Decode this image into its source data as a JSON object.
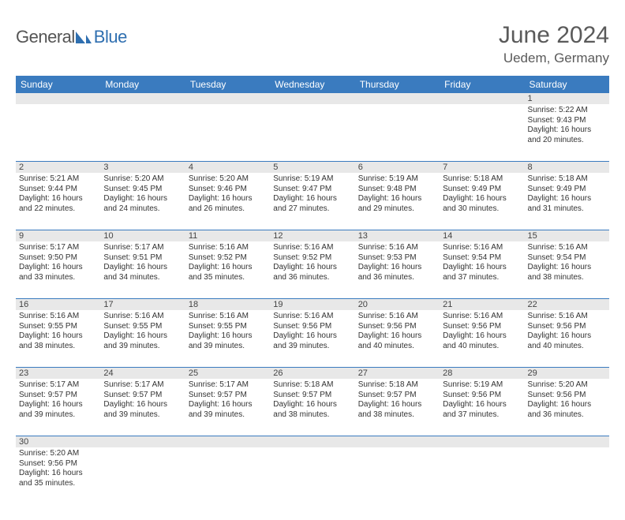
{
  "logo": {
    "part1": "General",
    "part2": "Blue"
  },
  "title": "June 2024",
  "location": "Uedem, Germany",
  "dayNames": [
    "Sunday",
    "Monday",
    "Tuesday",
    "Wednesday",
    "Thursday",
    "Friday",
    "Saturday"
  ],
  "colors": {
    "headerBg": "#3a7bbf",
    "headerText": "#ffffff",
    "dayNumBg": "#e8e8e8",
    "rowBorder": "#3a7bbf",
    "textColor": "#333333",
    "titleColor": "#5a5a5a",
    "logoGray": "#555555",
    "logoBlue": "#2f6fb0",
    "pageBg": "#ffffff"
  },
  "typography": {
    "title_fontsize": 30,
    "location_fontsize": 17,
    "dayheader_fontsize": 12,
    "daynum_fontsize": 11,
    "cell_fontsize": 10,
    "logo_fontsize": 22
  },
  "layout": {
    "columns": 7,
    "rows": 6,
    "cell_min_height": 72
  },
  "weeks": [
    {
      "nums": [
        "",
        "",
        "",
        "",
        "",
        "",
        "1"
      ],
      "cells": [
        null,
        null,
        null,
        null,
        null,
        null,
        {
          "sunrise": "Sunrise: 5:22 AM",
          "sunset": "Sunset: 9:43 PM",
          "daylight": "Daylight: 16 hours and 20 minutes."
        }
      ]
    },
    {
      "nums": [
        "2",
        "3",
        "4",
        "5",
        "6",
        "7",
        "8"
      ],
      "cells": [
        {
          "sunrise": "Sunrise: 5:21 AM",
          "sunset": "Sunset: 9:44 PM",
          "daylight": "Daylight: 16 hours and 22 minutes."
        },
        {
          "sunrise": "Sunrise: 5:20 AM",
          "sunset": "Sunset: 9:45 PM",
          "daylight": "Daylight: 16 hours and 24 minutes."
        },
        {
          "sunrise": "Sunrise: 5:20 AM",
          "sunset": "Sunset: 9:46 PM",
          "daylight": "Daylight: 16 hours and 26 minutes."
        },
        {
          "sunrise": "Sunrise: 5:19 AM",
          "sunset": "Sunset: 9:47 PM",
          "daylight": "Daylight: 16 hours and 27 minutes."
        },
        {
          "sunrise": "Sunrise: 5:19 AM",
          "sunset": "Sunset: 9:48 PM",
          "daylight": "Daylight: 16 hours and 29 minutes."
        },
        {
          "sunrise": "Sunrise: 5:18 AM",
          "sunset": "Sunset: 9:49 PM",
          "daylight": "Daylight: 16 hours and 30 minutes."
        },
        {
          "sunrise": "Sunrise: 5:18 AM",
          "sunset": "Sunset: 9:49 PM",
          "daylight": "Daylight: 16 hours and 31 minutes."
        }
      ]
    },
    {
      "nums": [
        "9",
        "10",
        "11",
        "12",
        "13",
        "14",
        "15"
      ],
      "cells": [
        {
          "sunrise": "Sunrise: 5:17 AM",
          "sunset": "Sunset: 9:50 PM",
          "daylight": "Daylight: 16 hours and 33 minutes."
        },
        {
          "sunrise": "Sunrise: 5:17 AM",
          "sunset": "Sunset: 9:51 PM",
          "daylight": "Daylight: 16 hours and 34 minutes."
        },
        {
          "sunrise": "Sunrise: 5:16 AM",
          "sunset": "Sunset: 9:52 PM",
          "daylight": "Daylight: 16 hours and 35 minutes."
        },
        {
          "sunrise": "Sunrise: 5:16 AM",
          "sunset": "Sunset: 9:52 PM",
          "daylight": "Daylight: 16 hours and 36 minutes."
        },
        {
          "sunrise": "Sunrise: 5:16 AM",
          "sunset": "Sunset: 9:53 PM",
          "daylight": "Daylight: 16 hours and 36 minutes."
        },
        {
          "sunrise": "Sunrise: 5:16 AM",
          "sunset": "Sunset: 9:54 PM",
          "daylight": "Daylight: 16 hours and 37 minutes."
        },
        {
          "sunrise": "Sunrise: 5:16 AM",
          "sunset": "Sunset: 9:54 PM",
          "daylight": "Daylight: 16 hours and 38 minutes."
        }
      ]
    },
    {
      "nums": [
        "16",
        "17",
        "18",
        "19",
        "20",
        "21",
        "22"
      ],
      "cells": [
        {
          "sunrise": "Sunrise: 5:16 AM",
          "sunset": "Sunset: 9:55 PM",
          "daylight": "Daylight: 16 hours and 38 minutes."
        },
        {
          "sunrise": "Sunrise: 5:16 AM",
          "sunset": "Sunset: 9:55 PM",
          "daylight": "Daylight: 16 hours and 39 minutes."
        },
        {
          "sunrise": "Sunrise: 5:16 AM",
          "sunset": "Sunset: 9:55 PM",
          "daylight": "Daylight: 16 hours and 39 minutes."
        },
        {
          "sunrise": "Sunrise: 5:16 AM",
          "sunset": "Sunset: 9:56 PM",
          "daylight": "Daylight: 16 hours and 39 minutes."
        },
        {
          "sunrise": "Sunrise: 5:16 AM",
          "sunset": "Sunset: 9:56 PM",
          "daylight": "Daylight: 16 hours and 40 minutes."
        },
        {
          "sunrise": "Sunrise: 5:16 AM",
          "sunset": "Sunset: 9:56 PM",
          "daylight": "Daylight: 16 hours and 40 minutes."
        },
        {
          "sunrise": "Sunrise: 5:16 AM",
          "sunset": "Sunset: 9:56 PM",
          "daylight": "Daylight: 16 hours and 40 minutes."
        }
      ]
    },
    {
      "nums": [
        "23",
        "24",
        "25",
        "26",
        "27",
        "28",
        "29"
      ],
      "cells": [
        {
          "sunrise": "Sunrise: 5:17 AM",
          "sunset": "Sunset: 9:57 PM",
          "daylight": "Daylight: 16 hours and 39 minutes."
        },
        {
          "sunrise": "Sunrise: 5:17 AM",
          "sunset": "Sunset: 9:57 PM",
          "daylight": "Daylight: 16 hours and 39 minutes."
        },
        {
          "sunrise": "Sunrise: 5:17 AM",
          "sunset": "Sunset: 9:57 PM",
          "daylight": "Daylight: 16 hours and 39 minutes."
        },
        {
          "sunrise": "Sunrise: 5:18 AM",
          "sunset": "Sunset: 9:57 PM",
          "daylight": "Daylight: 16 hours and 38 minutes."
        },
        {
          "sunrise": "Sunrise: 5:18 AM",
          "sunset": "Sunset: 9:57 PM",
          "daylight": "Daylight: 16 hours and 38 minutes."
        },
        {
          "sunrise": "Sunrise: 5:19 AM",
          "sunset": "Sunset: 9:56 PM",
          "daylight": "Daylight: 16 hours and 37 minutes."
        },
        {
          "sunrise": "Sunrise: 5:20 AM",
          "sunset": "Sunset: 9:56 PM",
          "daylight": "Daylight: 16 hours and 36 minutes."
        }
      ]
    },
    {
      "nums": [
        "30",
        "",
        "",
        "",
        "",
        "",
        ""
      ],
      "cells": [
        {
          "sunrise": "Sunrise: 5:20 AM",
          "sunset": "Sunset: 9:56 PM",
          "daylight": "Daylight: 16 hours and 35 minutes."
        },
        null,
        null,
        null,
        null,
        null,
        null
      ]
    }
  ]
}
